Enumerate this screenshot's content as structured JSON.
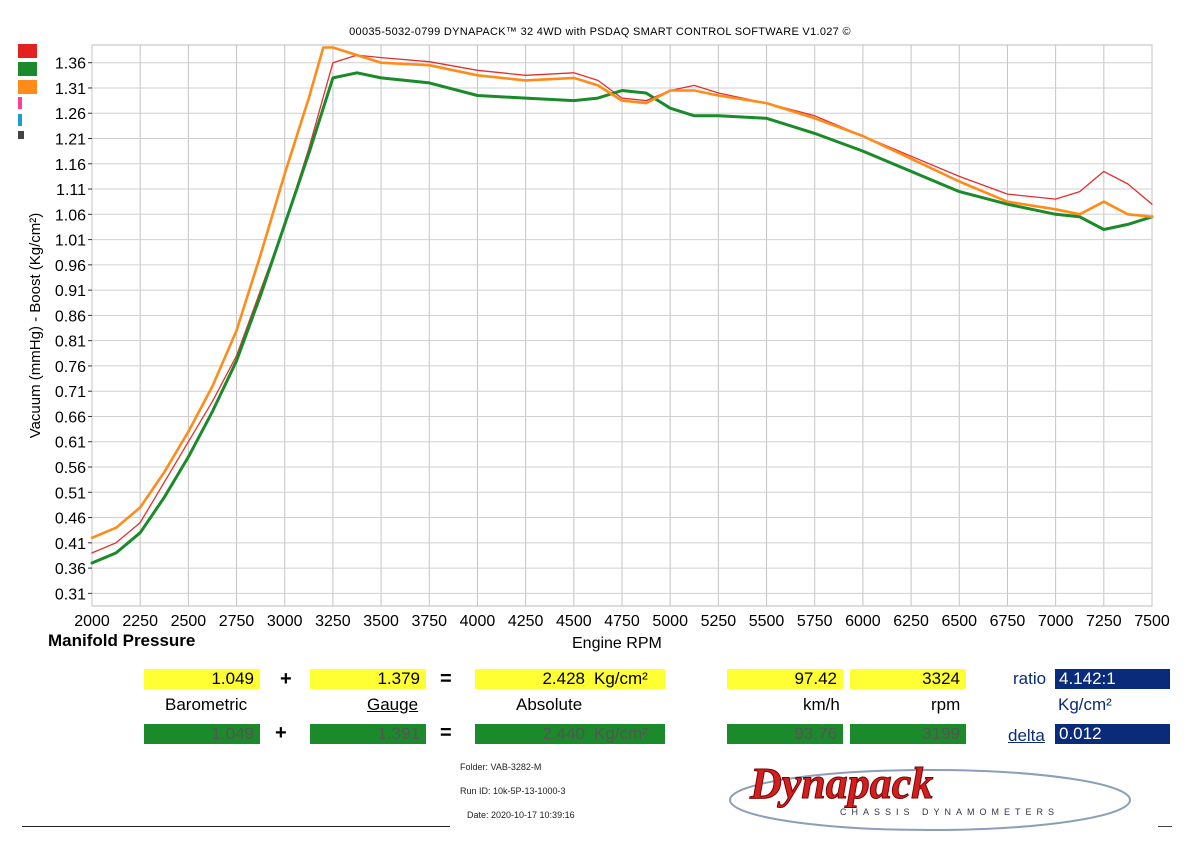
{
  "header": {
    "title": "00035-5032-0799 DYNAPACK™ 32 4WD with PSDAQ SMART CONTROL SOFTWARE V1.027 ©"
  },
  "chart_data": {
    "type": "line",
    "title": "Manifold Pressure",
    "xlabel": "Engine RPM",
    "ylabel": "Vacuum (mmHg) - Boost (Kg/cm²)",
    "xlim": [
      2000,
      7500
    ],
    "ylim": [
      0.285,
      1.395
    ],
    "x_ticks": [
      "2000",
      "2250",
      "2500",
      "2750",
      "3000",
      "3250",
      "3500",
      "3750",
      "4000",
      "4250",
      "4500",
      "4750",
      "5000",
      "5250",
      "5500",
      "5750",
      "6000",
      "6250",
      "6500",
      "6750",
      "7000",
      "7250",
      "7500"
    ],
    "y_ticks": [
      "1.36",
      "1.31",
      "1.26",
      "1.21",
      "1.16",
      "1.11",
      "1.06",
      "1.01",
      "0.96",
      "0.91",
      "0.86",
      "0.81",
      "0.76",
      "0.71",
      "0.66",
      "0.61",
      "0.56",
      "0.51",
      "0.46",
      "0.41",
      "0.36",
      "0.31"
    ],
    "grid": true,
    "series": [
      {
        "color": "#e03030",
        "width": 1.3,
        "points": [
          [
            2000,
            0.39
          ],
          [
            2125,
            0.41
          ],
          [
            2250,
            0.45
          ],
          [
            2375,
            0.53
          ],
          [
            2500,
            0.61
          ],
          [
            2625,
            0.69
          ],
          [
            2750,
            0.78
          ],
          [
            2875,
            0.91
          ],
          [
            3000,
            1.04
          ],
          [
            3125,
            1.19
          ],
          [
            3250,
            1.36
          ],
          [
            3375,
            1.375
          ],
          [
            3500,
            1.37
          ],
          [
            3750,
            1.362
          ],
          [
            4000,
            1.345
          ],
          [
            4250,
            1.335
          ],
          [
            4500,
            1.34
          ],
          [
            4625,
            1.325
          ],
          [
            4750,
            1.29
          ],
          [
            4875,
            1.285
          ],
          [
            5000,
            1.305
          ],
          [
            5125,
            1.315
          ],
          [
            5250,
            1.3
          ],
          [
            5500,
            1.28
          ],
          [
            5750,
            1.255
          ],
          [
            6000,
            1.215
          ],
          [
            6250,
            1.175
          ],
          [
            6500,
            1.135
          ],
          [
            6750,
            1.1
          ],
          [
            7000,
            1.09
          ],
          [
            7125,
            1.105
          ],
          [
            7250,
            1.145
          ],
          [
            7375,
            1.12
          ],
          [
            7500,
            1.08
          ]
        ]
      },
      {
        "color": "#1a8a2a",
        "width": 3.0,
        "points": [
          [
            2000,
            0.37
          ],
          [
            2125,
            0.39
          ],
          [
            2250,
            0.43
          ],
          [
            2375,
            0.5
          ],
          [
            2500,
            0.58
          ],
          [
            2625,
            0.67
          ],
          [
            2750,
            0.77
          ],
          [
            2875,
            0.9
          ],
          [
            3000,
            1.04
          ],
          [
            3125,
            1.18
          ],
          [
            3250,
            1.33
          ],
          [
            3375,
            1.34
          ],
          [
            3500,
            1.33
          ],
          [
            3750,
            1.32
          ],
          [
            4000,
            1.295
          ],
          [
            4250,
            1.29
          ],
          [
            4500,
            1.285
          ],
          [
            4625,
            1.29
          ],
          [
            4750,
            1.305
          ],
          [
            4875,
            1.3
          ],
          [
            5000,
            1.27
          ],
          [
            5125,
            1.255
          ],
          [
            5250,
            1.255
          ],
          [
            5500,
            1.25
          ],
          [
            5750,
            1.22
          ],
          [
            6000,
            1.185
          ],
          [
            6250,
            1.145
          ],
          [
            6500,
            1.105
          ],
          [
            6750,
            1.08
          ],
          [
            7000,
            1.06
          ],
          [
            7125,
            1.055
          ],
          [
            7250,
            1.03
          ],
          [
            7375,
            1.04
          ],
          [
            7500,
            1.055
          ]
        ]
      },
      {
        "color": "#ff8c1a",
        "width": 2.6,
        "points": [
          [
            2000,
            0.42
          ],
          [
            2125,
            0.44
          ],
          [
            2250,
            0.48
          ],
          [
            2375,
            0.55
          ],
          [
            2500,
            0.63
          ],
          [
            2625,
            0.72
          ],
          [
            2750,
            0.83
          ],
          [
            2875,
            0.98
          ],
          [
            3000,
            1.14
          ],
          [
            3125,
            1.29
          ],
          [
            3200,
            1.39
          ],
          [
            3250,
            1.39
          ],
          [
            3375,
            1.375
          ],
          [
            3500,
            1.36
          ],
          [
            3750,
            1.355
          ],
          [
            4000,
            1.335
          ],
          [
            4250,
            1.325
          ],
          [
            4500,
            1.33
          ],
          [
            4625,
            1.315
          ],
          [
            4750,
            1.285
          ],
          [
            4875,
            1.28
          ],
          [
            5000,
            1.305
          ],
          [
            5125,
            1.305
          ],
          [
            5250,
            1.295
          ],
          [
            5500,
            1.28
          ],
          [
            5750,
            1.25
          ],
          [
            6000,
            1.215
          ],
          [
            6250,
            1.17
          ],
          [
            6500,
            1.125
          ],
          [
            6750,
            1.085
          ],
          [
            7000,
            1.07
          ],
          [
            7125,
            1.06
          ],
          [
            7250,
            1.085
          ],
          [
            7375,
            1.06
          ],
          [
            7500,
            1.055
          ]
        ]
      }
    ]
  },
  "legend": {
    "colors": [
      "#e52020",
      "#1a8a2a",
      "#ff8c1a",
      "#ff3f8f",
      "#1aa0c8",
      "#444444"
    ]
  },
  "readout": {
    "row1": {
      "barometric": "1.049",
      "plus": "+",
      "gauge": "1.379",
      "equals": "=",
      "absolute": "2.428",
      "unit": "Kg/cm²",
      "speed": "97.42",
      "rpm": "3324",
      "ratio_label": "ratio",
      "ratio_value": "4.142:1"
    },
    "labels": {
      "barometric": "Barometric",
      "gauge": "Gauge",
      "absolute": "Absolute",
      "speed_unit": "km/h",
      "rpm_unit": "rpm",
      "ratio_unit": "Kg/cm²"
    },
    "row2": {
      "barometric": "1.049",
      "plus": "+",
      "gauge": "1.391",
      "equals": "=",
      "absolute": "2.440",
      "unit": "Kg/cm²",
      "speed": "93.76",
      "rpm": "3199",
      "delta_label": "delta",
      "delta_value": "0.012"
    }
  },
  "footer": {
    "folder": "Folder:  VAB-3282-M",
    "run_id": "Run ID:  10k-5P-13-1000-3",
    "date": "Date:  2020-10-17 10:39:16",
    "logo_text": "Dynapack",
    "logo_sub": "CHASSIS DYNAMOMETERS"
  }
}
